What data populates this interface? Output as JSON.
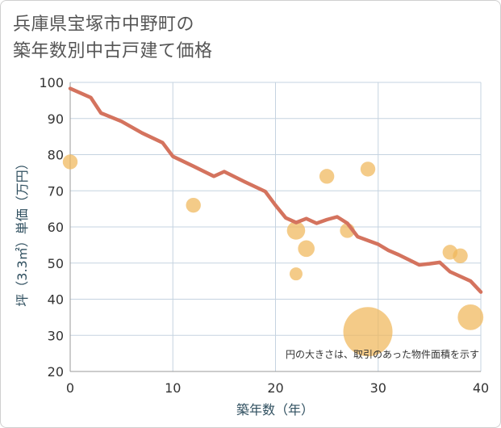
{
  "chart_data": {
    "type": "scatter",
    "title": [
      "兵庫県宝塚市中野町の",
      "築年数別中古戸建て価格"
    ],
    "xlabel": "築年数（年）",
    "ylabel": "坪（3.3㎡）単価（万円）",
    "xlim": [
      0,
      40
    ],
    "ylim": [
      20,
      100
    ],
    "xticks": [
      0,
      10,
      20,
      30,
      40
    ],
    "yticks": [
      20,
      30,
      40,
      50,
      60,
      70,
      80,
      90,
      100
    ],
    "grid": true,
    "note": "円の大きさは、取引のあった物件面積を示す",
    "colors": {
      "line": "#d4735e",
      "bubble": "#f0b75a",
      "grid": "#c5d3e0",
      "axis": "#999999"
    },
    "trend_line": {
      "x": [
        0,
        2,
        3,
        5,
        7,
        9,
        10,
        12,
        14,
        15,
        17,
        19,
        20,
        21,
        22,
        23,
        24,
        25,
        26,
        27,
        28,
        30,
        31,
        32,
        34,
        35,
        36,
        37,
        39,
        40
      ],
      "y": [
        98.3,
        95.8,
        91.5,
        89.2,
        86.0,
        83.3,
        79.5,
        76.8,
        74.0,
        75.3,
        72.5,
        69.8,
        66.0,
        62.5,
        61.2,
        62.3,
        61.0,
        62.0,
        62.8,
        61.0,
        57.3,
        55.2,
        53.5,
        52.3,
        49.5,
        49.8,
        50.2,
        47.6,
        45.0,
        42.0
      ]
    },
    "bubbles": [
      {
        "x": 0,
        "y": 78,
        "size": 2
      },
      {
        "x": 12,
        "y": 66,
        "size": 2
      },
      {
        "x": 22,
        "y": 59,
        "size": 3
      },
      {
        "x": 22,
        "y": 47,
        "size": 1.5
      },
      {
        "x": 23,
        "y": 54,
        "size": 2.5
      },
      {
        "x": 25,
        "y": 74,
        "size": 2
      },
      {
        "x": 27,
        "y": 59,
        "size": 2
      },
      {
        "x": 29,
        "y": 76,
        "size": 2
      },
      {
        "x": 29,
        "y": 31,
        "size": 22
      },
      {
        "x": 37,
        "y": 53,
        "size": 2
      },
      {
        "x": 38,
        "y": 52,
        "size": 2
      },
      {
        "x": 39,
        "y": 35,
        "size": 6
      }
    ]
  }
}
